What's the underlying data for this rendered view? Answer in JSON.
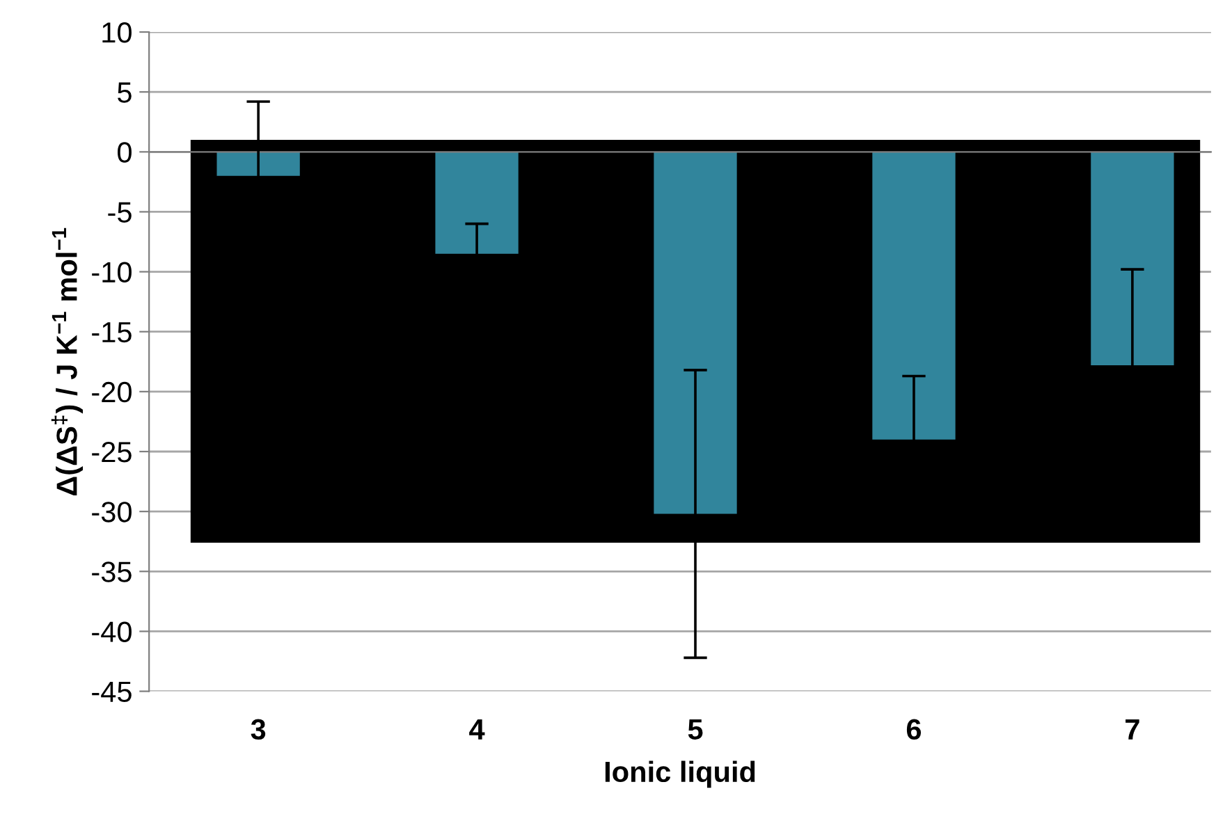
{
  "chart_data": {
    "type": "bar",
    "xlabel": "Ionic liquid",
    "ylabel": "Δ(ΔS$^{‡}$) / J K$^{−1}$ mol$^{−1}$",
    "categories": [
      "3",
      "4",
      "5",
      "6",
      "7"
    ],
    "values": [
      -2.0,
      -8.5,
      -30.2,
      -24.0,
      -17.8
    ],
    "errors": [
      6.2,
      2.5,
      12.0,
      5.3,
      8.0
    ],
    "color": "#31859c",
    "ylim": [
      -45,
      10
    ],
    "yticks": [
      -45,
      -40,
      -35,
      -30,
      -25,
      -20,
      -15,
      -10,
      -5,
      0,
      5,
      10
    ],
    "grid": "y",
    "legend": false
  }
}
